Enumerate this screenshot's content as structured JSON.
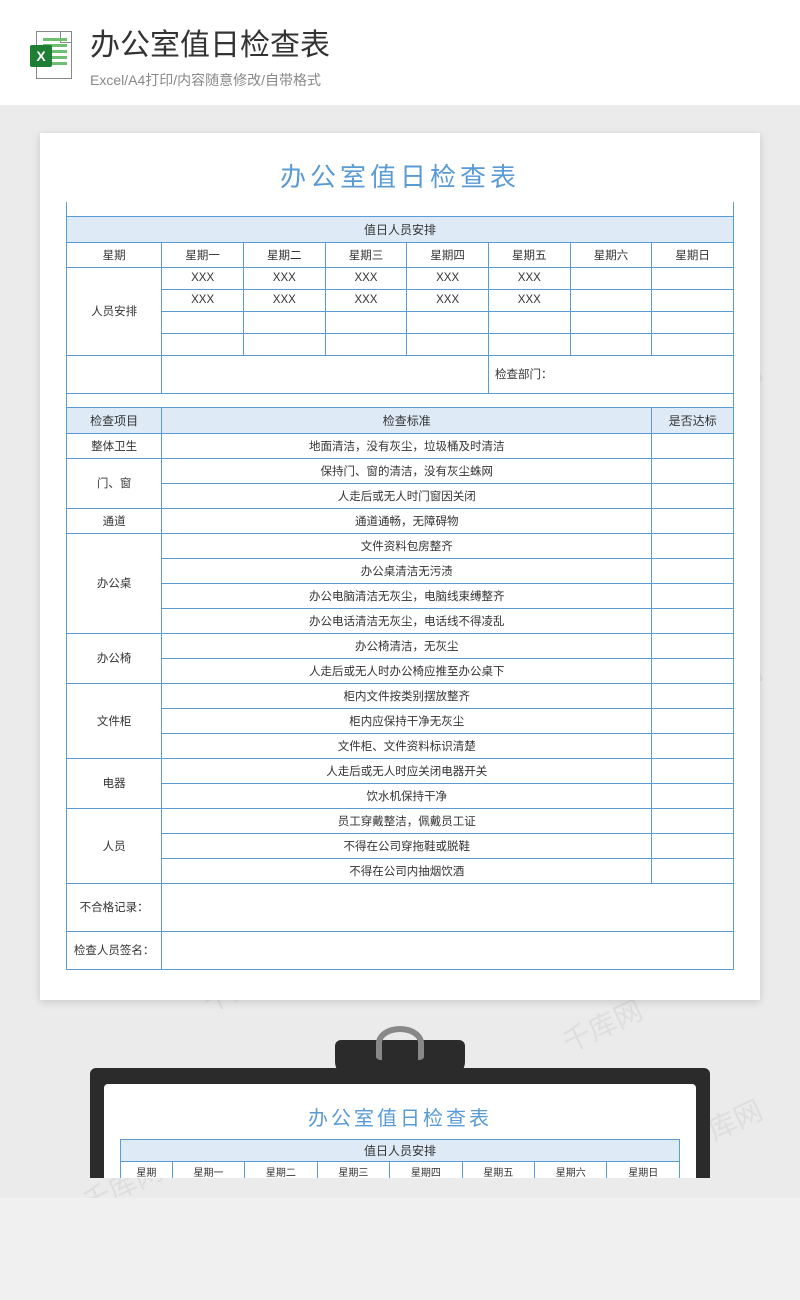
{
  "header": {
    "title": "办公室值日检查表",
    "subtitle": "Excel/A4打印/内容随意修改/自带格式",
    "icon_name": "excel-icon",
    "icon_letter": "X"
  },
  "watermark": "千库网",
  "colors": {
    "title_color": "#5a9bd5",
    "border_color": "#5a9bd5",
    "header_bg": "#deeaf6",
    "page_bg": "#ebebeb",
    "excel_green": "#1e7e34"
  },
  "sheet": {
    "title": "办公室值日检查表",
    "duty_section_header": "值日人员安排",
    "weekday_label": "星期",
    "weekdays": [
      "星期一",
      "星期二",
      "星期三",
      "星期四",
      "星期五",
      "星期六",
      "星期日"
    ],
    "staff_label": "人员安排",
    "staff_rows": [
      [
        "XXX",
        "XXX",
        "XXX",
        "XXX",
        "XXX",
        "",
        ""
      ],
      [
        "XXX",
        "XXX",
        "XXX",
        "XXX",
        "XXX",
        "",
        ""
      ],
      [
        "",
        "",
        "",
        "",
        "",
        "",
        ""
      ],
      [
        "",
        "",
        "",
        "",
        "",
        "",
        ""
      ]
    ],
    "check_dept_label": "检查部门：",
    "check_item_header": "检查项目",
    "check_standard_header": "检查标准",
    "check_pass_header": "是否达标",
    "check_groups": [
      {
        "item": "整体卫生",
        "standards": [
          "地面清洁，没有灰尘，垃圾桶及时清洁"
        ]
      },
      {
        "item": "门、窗",
        "standards": [
          "保持门、窗的清洁，没有灰尘蛛网",
          "人走后或无人时门窗因关闭"
        ]
      },
      {
        "item": "通道",
        "standards": [
          "通道通畅，无障碍物"
        ]
      },
      {
        "item": "办公桌",
        "standards": [
          "文件资料包房整齐",
          "办公桌清洁无污渍",
          "办公电脑清洁无灰尘，电脑线束缚整齐",
          "办公电话清洁无灰尘，电话线不得凌乱"
        ]
      },
      {
        "item": "办公椅",
        "standards": [
          "办公椅清洁，无灰尘",
          "人走后或无人时办公椅应推至办公桌下"
        ]
      },
      {
        "item": "文件柜",
        "standards": [
          "柜内文件按类别摆放整齐",
          "柜内应保持干净无灰尘",
          "文件柜、文件资料标识清楚"
        ]
      },
      {
        "item": "电器",
        "standards": [
          "人走后或无人时应关闭电器开关",
          "饮水机保持干净"
        ]
      },
      {
        "item": "人员",
        "standards": [
          "员工穿戴整洁，佩戴员工证",
          "不得在公司穿拖鞋或脱鞋",
          "不得在公司内抽烟饮酒"
        ]
      }
    ],
    "fail_record_label": "不合格记录：",
    "signature_label": "检查人员签名："
  }
}
